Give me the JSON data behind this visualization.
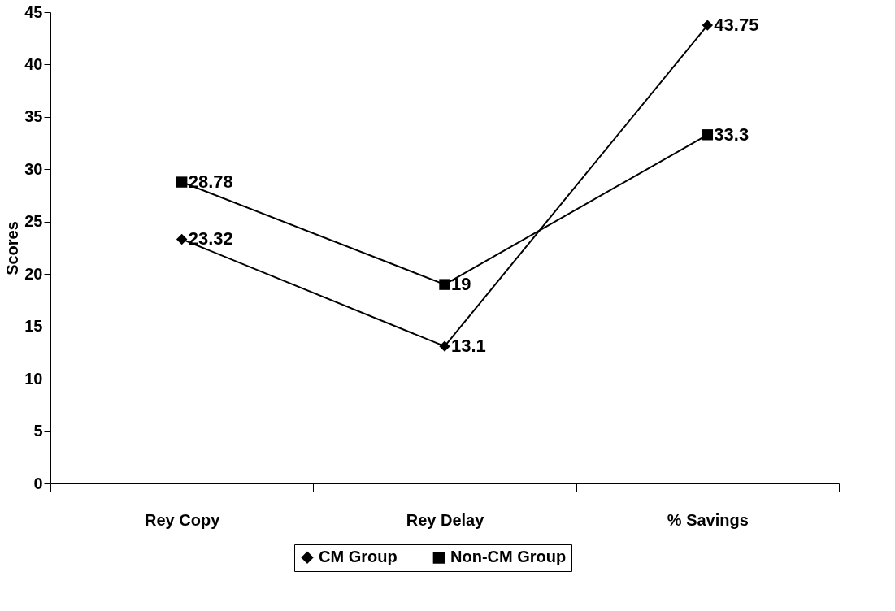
{
  "chart_data": {
    "type": "line",
    "ylabel": "Scores",
    "categories": [
      "Rey Copy",
      "Rey Delay",
      "% Savings"
    ],
    "ylim": [
      0,
      45
    ],
    "yticks": [
      0,
      5,
      10,
      15,
      20,
      25,
      30,
      35,
      40,
      45
    ],
    "grid": false,
    "legend": "bottom",
    "data_labels": true,
    "line_style": "solid",
    "series": [
      {
        "name": "CM Group",
        "color": "#000000",
        "marker": "diamond",
        "values": [
          23.32,
          13.1,
          43.75
        ]
      },
      {
        "name": "Non-CM Group",
        "color": "#000000",
        "marker": "square",
        "values": [
          28.78,
          19,
          33.3
        ]
      }
    ]
  }
}
